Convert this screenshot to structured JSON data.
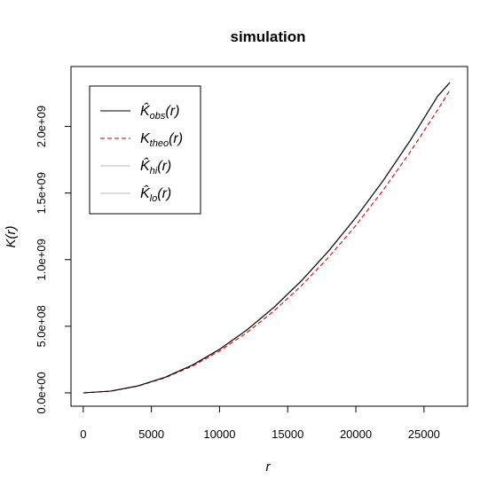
{
  "chart_data": {
    "type": "line",
    "title": "simulation",
    "xlabel": "r",
    "ylabel": "K(r)",
    "xlim": [
      -900,
      28200
    ],
    "ylim": [
      -100000000,
      2450000000
    ],
    "x_ticks": [
      0,
      5000,
      10000,
      15000,
      20000,
      25000
    ],
    "x_tick_labels": [
      "0",
      "5000",
      "10000",
      "15000",
      "20000",
      "25000"
    ],
    "y_ticks": [
      0,
      500000000,
      1000000000,
      1500000000,
      2000000000
    ],
    "y_tick_labels": [
      "0.0e+00",
      "5.0e+08",
      "1.0e+09",
      "1.5e+09",
      "2.0e+09"
    ],
    "legend_position": "top-left",
    "series": [
      {
        "legend_main": "K̂",
        "legend_sub": "obs",
        "legend_suffix": "(r)",
        "color": "#000000",
        "dash": "",
        "x": [
          0,
          2000,
          4000,
          6000,
          8000,
          10000,
          12000,
          14000,
          16000,
          18000,
          20000,
          22000,
          24000,
          26000,
          26900
        ],
        "y": [
          0,
          13000000,
          52000000,
          117000000,
          208000000,
          327000000,
          472000000,
          643000000,
          841000000,
          1065000000,
          1316000000,
          1593000000,
          1897000000,
          2227000000,
          2330000000
        ]
      },
      {
        "legend_main": "K",
        "legend_sub": "theo",
        "legend_suffix": "(r)",
        "color": "#dd0000",
        "dash": "5,3",
        "x": [
          0,
          2000,
          4000,
          6000,
          8000,
          10000,
          12000,
          14000,
          16000,
          18000,
          20000,
          22000,
          24000,
          26000,
          26900
        ],
        "y": [
          0,
          12600000,
          50300000,
          113000000,
          201000000,
          314000000,
          452000000,
          616000000,
          804000000,
          1018000000,
          1257000000,
          1521000000,
          1810000000,
          2124000000,
          2273000000
        ]
      },
      {
        "legend_main": "K̂",
        "legend_sub": "hi",
        "legend_suffix": "(r)",
        "color": "#bbbbbb",
        "dash": "",
        "x": [
          0,
          2000,
          4000,
          6000,
          8000,
          10000,
          12000,
          14000,
          16000,
          18000,
          20000,
          22000,
          24000,
          26000,
          26900
        ],
        "y": [
          0,
          13100000,
          52300000,
          117500000,
          209000000,
          328000000,
          473500000,
          645000000,
          843000000,
          1067000000,
          1318000000,
          1595000000,
          1899000000,
          2229000000,
          2333000000
        ]
      },
      {
        "legend_main": "K̂",
        "legend_sub": "lo",
        "legend_suffix": "(r)",
        "color": "#bbbbbb",
        "dash": "",
        "x": [
          0,
          2000,
          4000,
          6000,
          8000,
          10000,
          12000,
          14000,
          16000,
          18000,
          20000,
          22000,
          24000,
          26000,
          26900
        ],
        "y": [
          0,
          12900000,
          51700000,
          116500000,
          207000000,
          326000000,
          470500000,
          641000000,
          839000000,
          1063000000,
          1314000000,
          1591000000,
          1895000000,
          2225000000,
          2327000000
        ]
      }
    ]
  }
}
